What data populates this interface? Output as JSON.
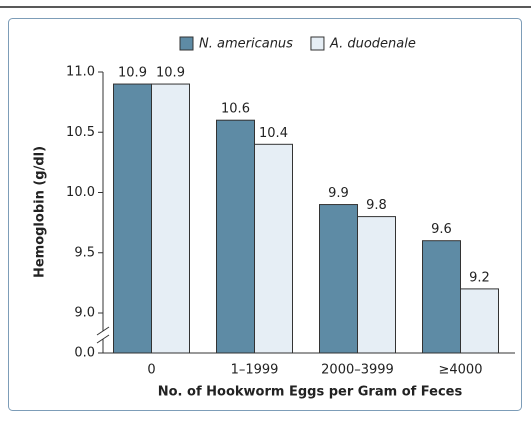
{
  "chart_data": {
    "type": "bar",
    "x_label": "No. of Hookworm Eggs per Gram of Feces",
    "y_label": "Hemoglobin (g/dl)",
    "categories": [
      "0",
      "1–1999",
      "2000–3999",
      "≥4000"
    ],
    "series": [
      {
        "name": "N. americanus",
        "color": "#5e8ba5",
        "values": [
          10.9,
          10.6,
          9.9,
          9.6
        ]
      },
      {
        "name": "A. duodenale",
        "color": "#e6eef5",
        "values": [
          10.9,
          10.4,
          9.8,
          9.2
        ]
      }
    ],
    "ylim": [
      0,
      11.0
    ],
    "axis_break": [
      0,
      9.0
    ],
    "yticks": [
      {
        "value": 0,
        "label": "0.0"
      },
      {
        "value": 9,
        "label": "9.0"
      },
      9.5,
      {
        "value": 10,
        "label": "10.0"
      },
      10.5,
      {
        "value": 11,
        "label": "11.0"
      }
    ],
    "legend": "top"
  }
}
